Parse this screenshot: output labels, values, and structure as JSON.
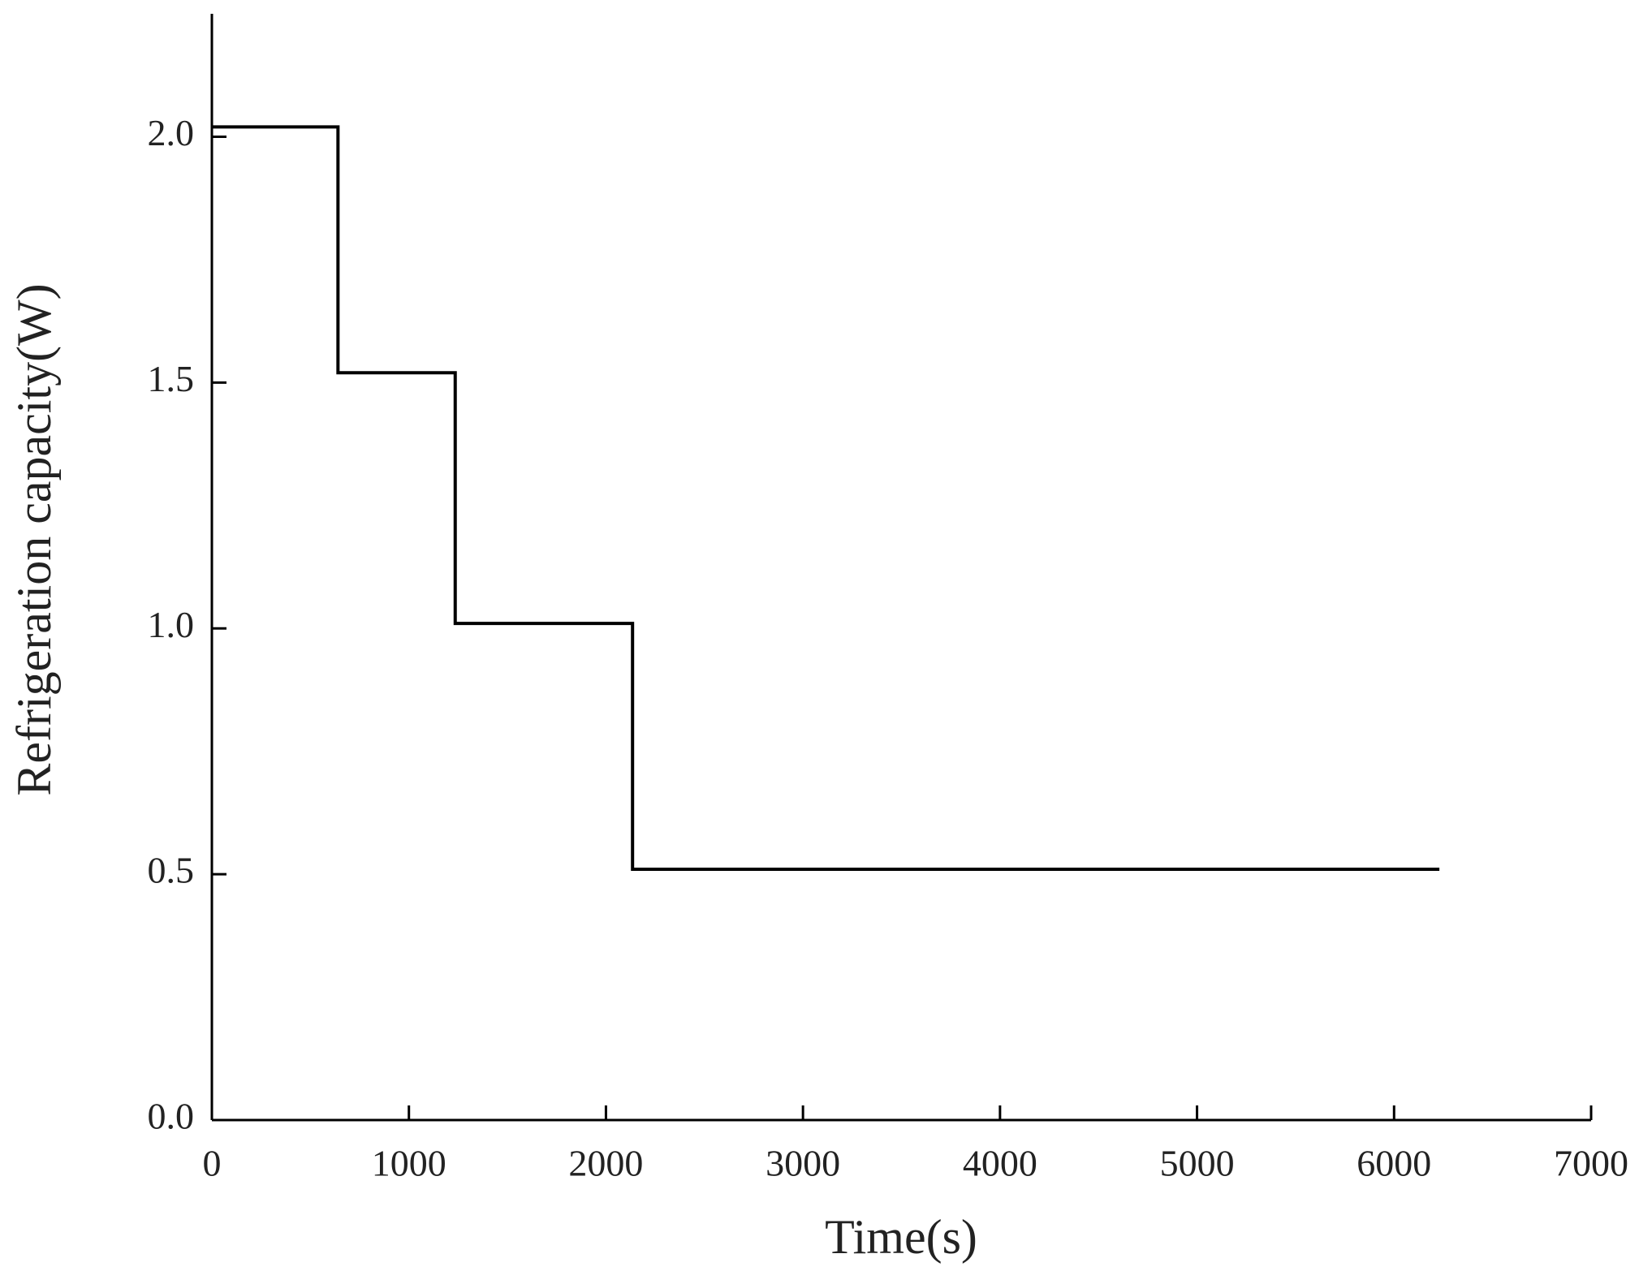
{
  "chart_data": {
    "type": "line",
    "x_label": "Time(s)",
    "y_label": "Refrigeration capacity(W)",
    "x": [
      0,
      640,
      640,
      1235,
      1235,
      2135,
      2135,
      6230
    ],
    "series": [
      {
        "color": "#000000",
        "values": [
          2.02,
          2.02,
          1.52,
          1.52,
          1.01,
          1.01,
          0.51,
          0.51
        ]
      }
    ],
    "xlim": [
      0,
      7000
    ],
    "xticks": [
      0,
      1000,
      2000,
      3000,
      4000,
      5000,
      6000,
      7000
    ],
    "ylim": [
      0,
      2.25
    ],
    "yticks": [
      {
        "value": 0,
        "label": "0.0"
      },
      0.5,
      {
        "value": 1,
        "label": "1.0"
      },
      1.5,
      {
        "value": 2,
        "label": "2.0"
      }
    ],
    "grid": false
  }
}
